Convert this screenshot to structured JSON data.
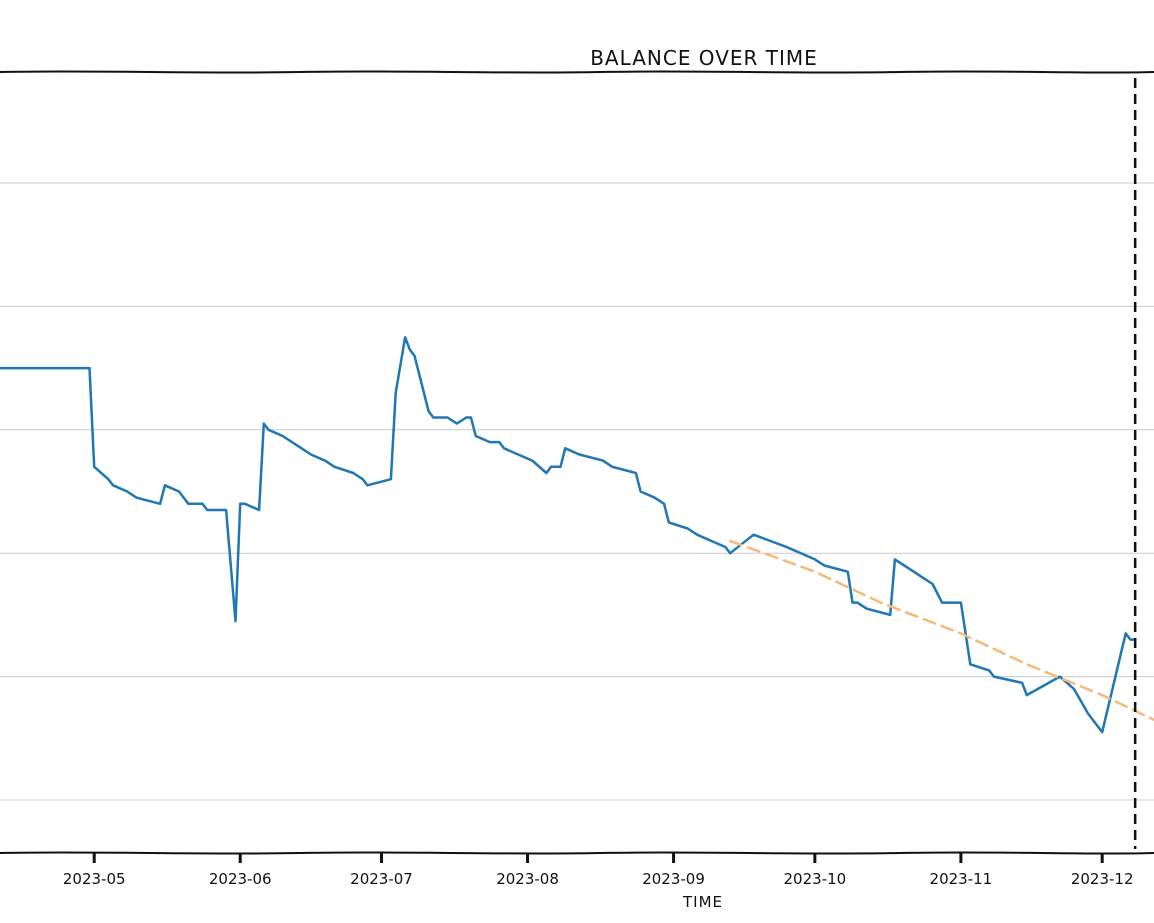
{
  "chart_data": {
    "type": "line",
    "title": "BALANCE OVER TIME",
    "xlabel": "TIME",
    "ylabel": "",
    "x_tick_labels": [
      "2023-05",
      "2023-06",
      "2023-07",
      "2023-08",
      "2023-09",
      "2023-10",
      "2023-11",
      "2023-12"
    ],
    "x_ticks": [
      "2023-05-01",
      "2023-06-01",
      "2023-07-01",
      "2023-08-01",
      "2023-09-01",
      "2023-10-01",
      "2023-11-01",
      "2023-12-01"
    ],
    "xlim": [
      "2023-04-11",
      "2023-12-12"
    ],
    "ylim": [
      0,
      100
    ],
    "y_gridlines": [
      6,
      26,
      46,
      66,
      86,
      106
    ],
    "grid": true,
    "y_tick_labels_visible": false,
    "colors": {
      "balance": "#1f77b4",
      "trend": "#f5b97a",
      "marker": "#111111",
      "grid": "#cccccc"
    },
    "series": [
      {
        "style": "solid",
        "color": "#1f77b4",
        "x": [
          "2023-04-11",
          "2023-04-30",
          "2023-05-01",
          "2023-05-04",
          "2023-05-05",
          "2023-05-08",
          "2023-05-10",
          "2023-05-15",
          "2023-05-16",
          "2023-05-19",
          "2023-05-20",
          "2023-05-21",
          "2023-05-24",
          "2023-05-25",
          "2023-05-27",
          "2023-05-29",
          "2023-05-31",
          "2023-06-01",
          "2023-06-02",
          "2023-06-05",
          "2023-06-06",
          "2023-06-07",
          "2023-06-10",
          "2023-06-14",
          "2023-06-16",
          "2023-06-19",
          "2023-06-21",
          "2023-06-25",
          "2023-06-27",
          "2023-06-28",
          "2023-07-03",
          "2023-07-04",
          "2023-07-06",
          "2023-07-07",
          "2023-07-08",
          "2023-07-11",
          "2023-07-12",
          "2023-07-15",
          "2023-07-17",
          "2023-07-19",
          "2023-07-20",
          "2023-07-21",
          "2023-07-24",
          "2023-07-26",
          "2023-07-27",
          "2023-07-30",
          "2023-08-02",
          "2023-08-05",
          "2023-08-06",
          "2023-08-08",
          "2023-08-09",
          "2023-08-12",
          "2023-08-17",
          "2023-08-19",
          "2023-08-24",
          "2023-08-25",
          "2023-08-28",
          "2023-08-30",
          "2023-08-31",
          "2023-09-04",
          "2023-09-06",
          "2023-09-09",
          "2023-09-12",
          "2023-09-13",
          "2023-09-18",
          "2023-09-25",
          "2023-10-01",
          "2023-10-03",
          "2023-10-08",
          "2023-10-09",
          "2023-10-10",
          "2023-10-12",
          "2023-10-17",
          "2023-10-18",
          "2023-10-22",
          "2023-10-24",
          "2023-10-26",
          "2023-10-28",
          "2023-10-31",
          "2023-11-01",
          "2023-11-03",
          "2023-11-07",
          "2023-11-08",
          "2023-11-14",
          "2023-11-15",
          "2023-11-22",
          "2023-11-25",
          "2023-11-28",
          "2023-11-30",
          "2023-12-01",
          "2023-12-06",
          "2023-12-07",
          "2023-12-08"
        ],
        "y": [
          76,
          76,
          60,
          58,
          57,
          56,
          55,
          54,
          57,
          56,
          55,
          54,
          54,
          53,
          53,
          53,
          35,
          54,
          54,
          53,
          67,
          66,
          65,
          63,
          62,
          61,
          60,
          59,
          58,
          57,
          58,
          72,
          81,
          79,
          78,
          69,
          68,
          68,
          67,
          68,
          68,
          65,
          64,
          64,
          63,
          62,
          61,
          59,
          60,
          60,
          63,
          62,
          61,
          60,
          59,
          56,
          55,
          54,
          51,
          50,
          49,
          48,
          47,
          46,
          49,
          47,
          45,
          44,
          43,
          38,
          38,
          37,
          36,
          45,
          43,
          42,
          41,
          38,
          38,
          38,
          28,
          27,
          26,
          25,
          23,
          26,
          24,
          20,
          18,
          17,
          33,
          32,
          32
        ]
      },
      {
        "style": "dashed",
        "color": "#f5b97a",
        "x": [
          "2023-09-13",
          "2023-10-01",
          "2023-10-15",
          "2023-11-01",
          "2023-11-15",
          "2023-12-01",
          "2023-12-12"
        ],
        "y": [
          48,
          43,
          38,
          33,
          28,
          23,
          19
        ]
      }
    ],
    "vertical_marker": {
      "style": "dashed",
      "x": "2023-12-08"
    }
  }
}
